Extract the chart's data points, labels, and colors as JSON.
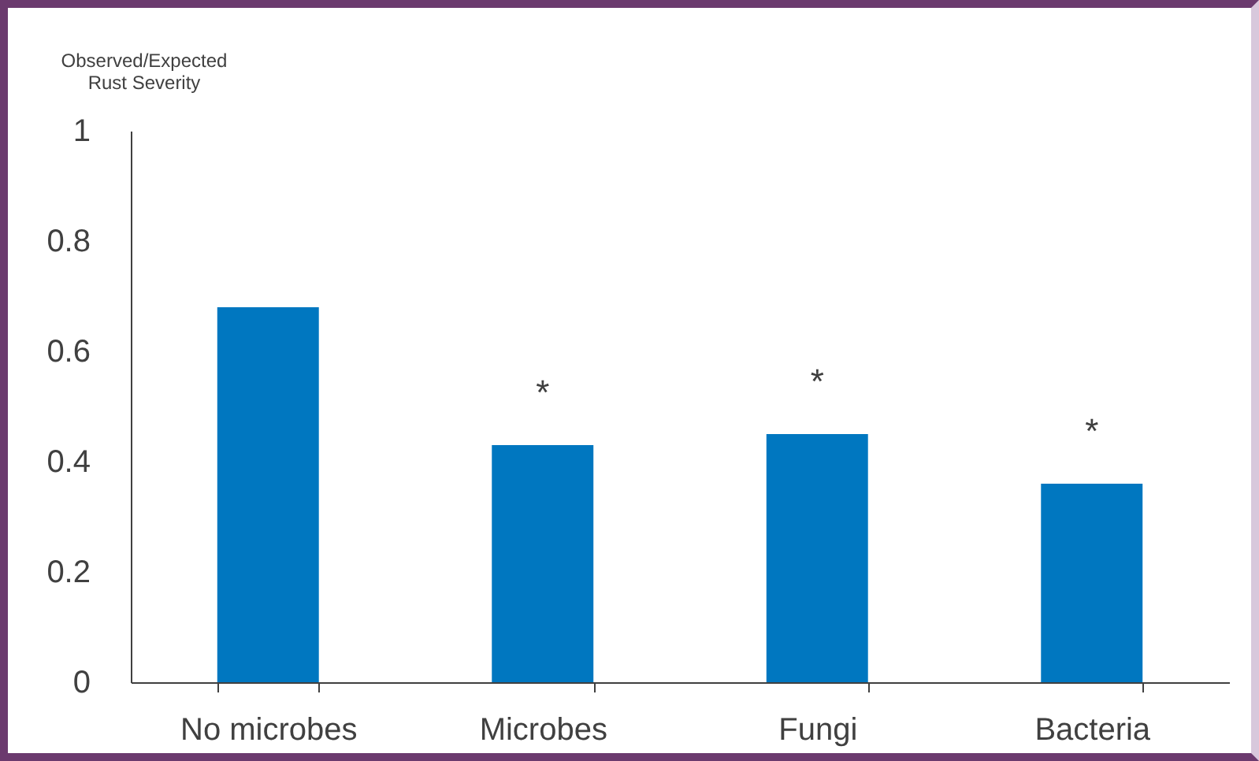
{
  "chart_data": {
    "type": "bar",
    "ylabel": "Observed/Expected\nRust Severity",
    "categories": [
      "No microbes",
      "Microbes",
      "Fungi",
      "Bacteria"
    ],
    "values": [
      0.68,
      0.43,
      0.45,
      0.36
    ],
    "color": "#0077c0",
    "ylim": [
      0,
      1
    ],
    "yticks": [
      0,
      0.2,
      0.4,
      0.6,
      0.8,
      1
    ],
    "grid": false,
    "annotations": [
      {
        "text": "*",
        "x": "Microbes",
        "y": 0.43
      },
      {
        "text": "*",
        "x": "Fungi",
        "y": 0.45
      },
      {
        "text": "*",
        "x": "Bacteria",
        "y": 0.36
      }
    ]
  }
}
